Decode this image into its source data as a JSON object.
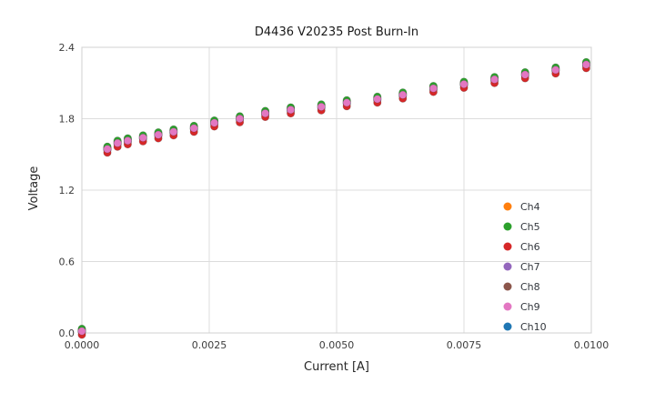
{
  "chart_data": {
    "type": "scatter",
    "title": "D4436 V20235 Post Burn-In",
    "xlabel": "Current [A]",
    "ylabel": "Voltage",
    "xlim": [
      0,
      0.01
    ],
    "ylim": [
      0,
      2.4
    ],
    "grid": true,
    "legend_position": "lower right",
    "x_ticks": [
      {
        "value": 0.0,
        "label": "0.0000"
      },
      {
        "value": 0.0025,
        "label": "0.0025"
      },
      {
        "value": 0.005,
        "label": "0.0050"
      },
      {
        "value": 0.0075,
        "label": "0.0075"
      },
      {
        "value": 0.01,
        "label": "0.0100"
      }
    ],
    "y_ticks": [
      {
        "value": 0.0,
        "label": "0.0"
      },
      {
        "value": 0.6,
        "label": "0.6"
      },
      {
        "value": 1.2,
        "label": "1.2"
      },
      {
        "value": 1.8,
        "label": "1.8"
      },
      {
        "value": 2.4,
        "label": "2.4"
      }
    ],
    "x": [
      0.0,
      0.0005,
      0.0007,
      0.0009,
      0.0012,
      0.0015,
      0.0018,
      0.0022,
      0.0026,
      0.0031,
      0.0036,
      0.0041,
      0.0047,
      0.0052,
      0.0058,
      0.0063,
      0.0069,
      0.0075,
      0.0081,
      0.0087,
      0.0093,
      0.0099
    ],
    "values_base": [
      0.015,
      1.545,
      1.595,
      1.615,
      1.64,
      1.665,
      1.69,
      1.72,
      1.765,
      1.8,
      1.845,
      1.875,
      1.9,
      1.935,
      1.965,
      2.0,
      2.055,
      2.09,
      2.13,
      2.17,
      2.21,
      2.255
    ],
    "series": [
      {
        "name": "Ch4",
        "color": "#ff7f0e",
        "offset": 0.012
      },
      {
        "name": "Ch5",
        "color": "#2ca02c",
        "offset": 0.02
      },
      {
        "name": "Ch6",
        "color": "#d62728",
        "offset": -0.03
      },
      {
        "name": "Ch7",
        "color": "#9467bd",
        "offset": 0.006
      },
      {
        "name": "Ch8",
        "color": "#8c564b",
        "offset": -0.008
      },
      {
        "name": "Ch9",
        "color": "#e377c2",
        "offset": 0.0
      },
      {
        "name": "Ch10",
        "color": "#1f77b4",
        "offset": -0.003
      }
    ],
    "draw_order": [
      "Ch4",
      "Ch7",
      "Ch8",
      "Ch10",
      "Ch6",
      "Ch5",
      "Ch9"
    ],
    "colors": {
      "grid": "#dcdcdc",
      "plot_border": "#d0d0d0",
      "tick_label": "#3c3c3c",
      "legend_text": "#33373d"
    }
  }
}
